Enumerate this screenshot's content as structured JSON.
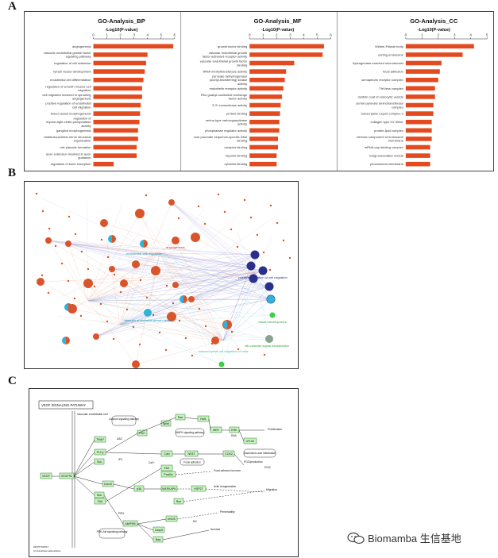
{
  "panel_labels": {
    "a": "A",
    "b": "B",
    "c": "C"
  },
  "colors": {
    "bar": "#e34a1f",
    "node_orange": "#d9542b",
    "node_blue": "#2b2f8c",
    "node_cyan": "#2fb3d6",
    "node_green": "#3ecf47",
    "kegg_box": "#c9f3c1",
    "kegg_border": "#2e7d32"
  },
  "chart_data": [
    {
      "type": "bar",
      "orientation": "horizontal",
      "title": "GO-Analysis_BP",
      "xlabel": "-Log10(P-value)",
      "xlim": [
        0,
        6
      ],
      "ticks": [
        "0",
        "1",
        "2",
        "3",
        "4",
        "5",
        "6"
      ],
      "categories": [
        "angiogenesis",
        "vascular endothelial growth factor signaling pathway",
        "regulation of cell adhesion",
        "lymph vessel development",
        "endothelial cell differentiation",
        "regulation of smooth muscle cell migration",
        "cell migration involved in sprouting angiogenesis",
        "positive regulation of endothelial cell migration",
        "blood vessel morphogenesis",
        "regulation of myosin-light-chain-phosphatase activity",
        "ganglion morphogenesis",
        "vestibulocochlear nerve structural organization",
        "otic placode formation",
        "axon extension involved in axon guidance",
        "regulation of bone resorption"
      ],
      "values": [
        5.9,
        4.0,
        3.9,
        3.8,
        3.7,
        3.6,
        3.6,
        3.5,
        3.45,
        3.4,
        3.3,
        3.3,
        3.2,
        3.2,
        1.5
      ]
    },
    {
      "type": "bar",
      "orientation": "horizontal",
      "title": "GO-Analysis_MF",
      "xlabel": "-Log10(P-value)",
      "xlim": [
        0,
        6
      ],
      "ticks": [
        "0",
        "1",
        "2",
        "3",
        "4",
        "5",
        "6"
      ],
      "categories": [
        "growth factor binding",
        "vascular endothelial growth factor-activated receptor activity",
        "vascular endothelial growth factor binding",
        "tRNA methyltransferase activity",
        "pyruvate dehydrogenase (acetyl-transferring) kinase activity",
        "endothelin receptor activity",
        "Rho guanyl-nucleotide exchange factor activity",
        "3'-5' exonuclease activity",
        "protein binding",
        "serine-type carboxypeptidase activity",
        "phosphatase regulator activity",
        "core promoter sequence-specific DNA binding",
        "receptor binding",
        "heparin binding",
        "cytokine binding"
      ],
      "values": [
        5.5,
        5.4,
        3.3,
        2.7,
        2.6,
        2.5,
        2.4,
        2.3,
        2.25,
        2.2,
        2.2,
        2.1,
        2.1,
        2.0,
        2.0
      ]
    },
    {
      "type": "bar",
      "orientation": "horizontal",
      "title": "GO-Analysis_CC",
      "xlabel": "-Log10(P-value)",
      "xlim": [
        0,
        5
      ],
      "ticks": [
        "0",
        "1",
        "2",
        "3",
        "4",
        "5"
      ],
      "categories": [
        "Weibel-Palade body",
        "sorting endosome",
        "hydrogenase-enriched microdomain",
        "focal adhesion",
        "semaphorin receptor complex",
        "Tfr/Vess complex",
        "clathrin coat of endocytic vesicle",
        "serine-pyruvate aminotransferase complex",
        "transcription export complex 2",
        "collagen type XV trimer",
        "protein-lipid complex",
        "intrinsic component of endosome membrane",
        "mRNA cap binding complex",
        "Golgi-associated vesicle",
        "peroxisomal membrane"
      ],
      "values": [
        4.2,
        3.5,
        2.2,
        2.1,
        2.0,
        1.8,
        1.8,
        1.7,
        1.7,
        1.6,
        1.6,
        1.6,
        1.5,
        1.5,
        1.5
      ]
    }
  ],
  "network": {
    "labels": {
      "angiogenesis": "angiogenesis",
      "endothelial": "endothelial cell migration",
      "vegf": "vascular endothelial growth factor",
      "green1": "vessel development",
      "green2": "otic placode signal transduction",
      "cyan2": "mesenchymal cell migration of cells",
      "blue1": "positive regulation of cell migration"
    }
  },
  "kegg": {
    "title": "VEGF SIGNALING PATHWAY",
    "cell_label": "Vascular endothelial cell",
    "genes": {
      "vegf": "VEGF",
      "vegfr2": "VEGFR2",
      "trap": "TRAP",
      "plcg": "PLCγ",
      "sck": "Sck",
      "cdc42": "Cdc42",
      "shb": "Shb",
      "fak": "FAK",
      "paxillin": "Paxillin",
      "pkc": "PKC",
      "sphk": "SphK",
      "ras": "Ras",
      "raf": "Raf1",
      "mek": "MEK",
      "erk": "ERK",
      "pla2": "cPLA2",
      "calcn": "CaN",
      "nfat": "NFAT",
      "cox2": "COX2",
      "p38": "p38",
      "mapkapk": "MAPKAPK",
      "hsp27": "HSP27",
      "rac": "Rac",
      "pi3k": "PI3K",
      "akt": "Akt/PKB",
      "enos": "eNOS",
      "casp9": "Casp9",
      "bad": "Bad"
    },
    "labels": {
      "calcium": "Calcium signaling pathway",
      "mapk": "MAPK signaling pathway",
      "focal": "Focal adhesion",
      "pi3k_akt": "PI3K-Akt signaling pathway",
      "proliferation": "Proliferation",
      "arachidonic": "Arachidonic acid metabolism",
      "pgs": "PGI2production",
      "pgi2": "PGI2",
      "focal_turnover": "Focal adhesion turnover",
      "actin": "Actin reorganization",
      "migration": "Migration",
      "permeability": "Permeability",
      "survival": "Survival",
      "dag": "DAG",
      "ip3": "IP3",
      "ca": "Ca2+",
      "dna": "DNA",
      "no": "NO",
      "pip3": "PIP3",
      "code": "04370 5/28/17",
      "copyright": "(c) Kanehisa Laboratories"
    }
  },
  "watermark": "Biomamba 生信基地"
}
